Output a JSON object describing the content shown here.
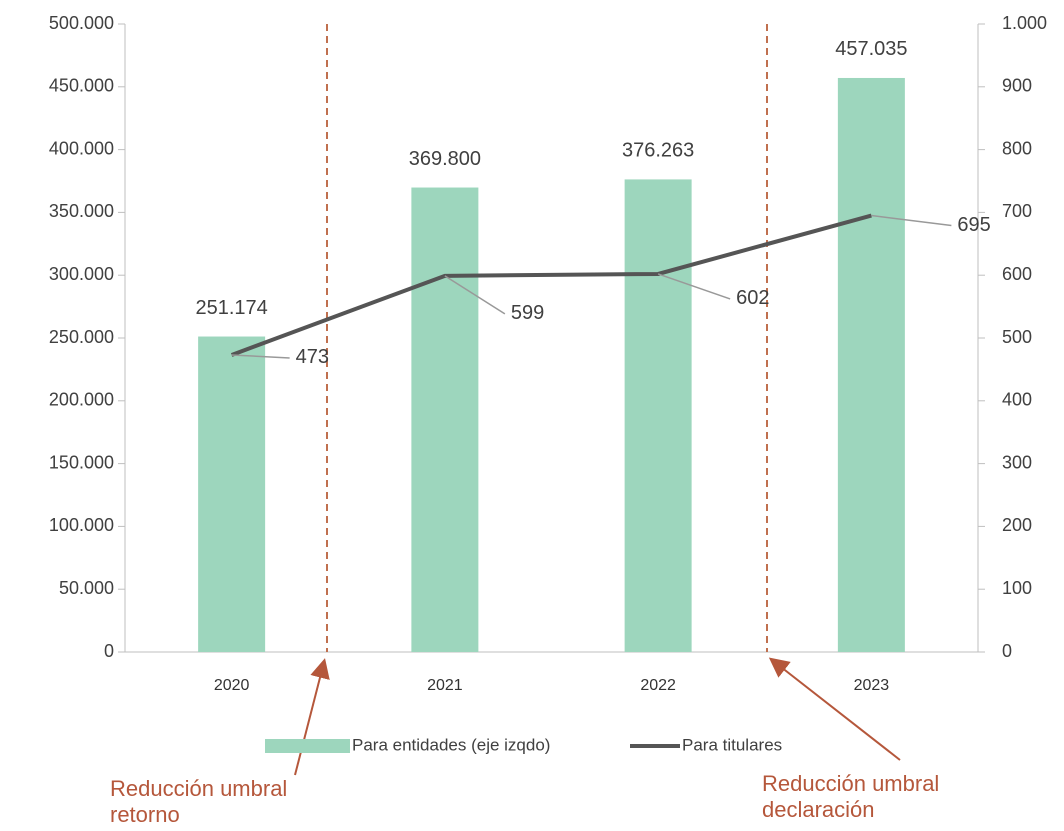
{
  "chart_data": {
    "type": "bar-line",
    "categories": [
      "2020",
      "2021",
      "2022",
      "2023"
    ],
    "series": [
      {
        "name": "Para entidades (eje izqdo)",
        "type": "bar",
        "color": "#9dd6bd",
        "values": [
          251174,
          369800,
          376263,
          457035
        ],
        "value_labels": [
          "251.174",
          "369.800",
          "376.263",
          "457.035"
        ]
      },
      {
        "name": "Para titulares",
        "type": "line",
        "axis": "y2",
        "color": "#555555",
        "values": [
          473,
          599,
          602,
          695
        ]
      }
    ],
    "ylim": [
      0,
      500000
    ],
    "yticks": [
      0,
      {
        "value": 50000,
        "label": "50.000"
      },
      {
        "value": 100000,
        "label": "100.000"
      },
      {
        "value": 150000,
        "label": "150.000"
      },
      {
        "value": 200000,
        "label": "200.000"
      },
      {
        "value": 250000,
        "label": "250.000"
      },
      {
        "value": 300000,
        "label": "300.000"
      },
      {
        "value": 350000,
        "label": "350.000"
      },
      {
        "value": 400000,
        "label": "400.000"
      },
      {
        "value": 450000,
        "label": "450.000"
      },
      {
        "value": 500000,
        "label": "500.000"
      }
    ],
    "y2lim": [
      0,
      1000
    ],
    "y2ticks": [
      0,
      100,
      200,
      300,
      400,
      500,
      600,
      700,
      800,
      900,
      {
        "value": 1000,
        "label": "1.000"
      }
    ],
    "grid": false,
    "legend": "bottom",
    "annotations": [
      {
        "text": "Reducción umbral retorno"
      },
      {
        "text": "Reducción umbral declaración"
      }
    ]
  }
}
